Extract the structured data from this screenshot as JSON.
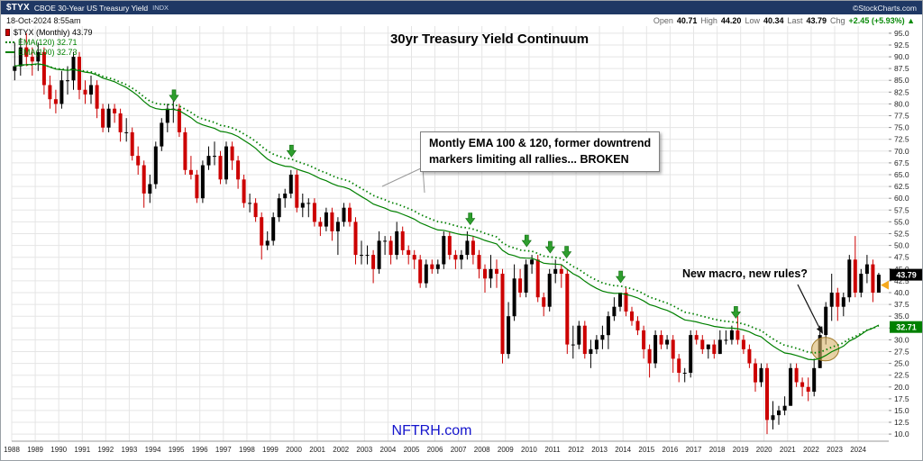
{
  "header": {
    "symbol": "$TYX",
    "symbol_desc": "CBOE 30-Year US Treasury Yield",
    "exchange": "INDX",
    "source": "©StockCharts.com",
    "datetime": "18-Oct-2024 8:55am",
    "quote": {
      "open_l": "Open",
      "open_v": "40.71",
      "high_l": "High",
      "high_v": "44.20",
      "low_l": "Low",
      "low_v": "40.34",
      "last_l": "Last",
      "last_v": "43.79",
      "chg_l": "Chg",
      "chg_v": "+2.45 (+5.93%) ▲"
    }
  },
  "legend": {
    "series": "$TYX (Monthly) 43.79",
    "ema120": "EMA(120) 32.71",
    "ema100": "EMA(100) 32.73"
  },
  "title": "30yr Treasury Yield Continuum",
  "watermark": "NFTRH.com",
  "annotations": {
    "callout_line1": "Montly EMA 100 & 120, former downtrend",
    "callout_line2": "markers limiting all rallies... BROKEN",
    "question": "New macro, new rules?"
  },
  "price_labels": {
    "last": "43.79",
    "ema": "32.71"
  },
  "colors": {
    "navy": "#1f3864",
    "candle_up": "#000000",
    "candle_down": "#cc0000",
    "ema_green": "#008000",
    "arrow_green": "#2e9e2e",
    "highlight_tan": "#d8b46a",
    "watermark_blue": "#1414cc",
    "chg_green": "#0a8a0a",
    "edge_marker_orange": "#f5a81c"
  },
  "chart_data": {
    "type": "candlestick",
    "title": "30yr Treasury Yield Continuum",
    "xlabel": "",
    "ylabel": "",
    "x_start_year": 1988,
    "x_interval_years": 0.25,
    "ylim": [
      8.5,
      96.5
    ],
    "grid": true,
    "x_ticks": [
      1988,
      1989,
      1990,
      1991,
      1992,
      1993,
      1994,
      1995,
      1996,
      1997,
      1998,
      1999,
      2000,
      2001,
      2002,
      2003,
      2004,
      2005,
      2006,
      2007,
      2008,
      2009,
      2010,
      2011,
      2012,
      2013,
      2014,
      2015,
      2016,
      2017,
      2018,
      2019,
      2020,
      2021,
      2022,
      2023,
      2024
    ],
    "y_ticks": [
      95,
      92.5,
      90,
      87.5,
      85,
      82.5,
      80,
      77.5,
      75,
      72.5,
      70,
      67.5,
      65,
      62.5,
      60,
      57.5,
      55,
      52.5,
      50,
      47.5,
      45,
      42.5,
      40,
      37.5,
      35,
      32.5,
      30,
      27.5,
      25,
      22.5,
      20,
      17.5,
      15,
      12.5,
      10
    ],
    "series": [
      {
        "name": "$TYX (Monthly)",
        "style": "candlestick",
        "last": 43.79
      },
      {
        "name": "EMA(120)",
        "style": "dotted-green",
        "last": 32.71
      },
      {
        "name": "EMA(100)",
        "style": "solid-green",
        "last": 32.73
      }
    ],
    "ema_periods_months": [
      100,
      120
    ],
    "months_per_bar": 3,
    "last_price": 43.79,
    "ema_label_value": 32.71,
    "edge_marker_value": 41.6,
    "arrows_years": [
      1994.9,
      1999.9,
      2007.5,
      2009.9,
      2010.9,
      2011.6,
      2013.9,
      2018.8
    ],
    "highlight": {
      "year": 2022.6,
      "value": 28,
      "note": "EMA breakout zone"
    },
    "ohlc": [
      [
        87,
        93,
        85,
        88
      ],
      [
        88,
        94,
        86,
        92
      ],
      [
        92,
        95,
        88,
        90
      ],
      [
        90,
        92,
        86,
        89
      ],
      [
        89,
        93,
        87,
        91
      ],
      [
        91,
        92,
        82,
        84
      ],
      [
        84,
        86,
        79,
        81
      ],
      [
        81,
        83,
        78,
        80
      ],
      [
        80,
        87,
        79,
        85
      ],
      [
        85,
        88,
        82,
        85
      ],
      [
        85,
        91,
        83,
        90
      ],
      [
        90,
        91,
        81,
        83
      ],
      [
        83,
        85,
        80,
        82
      ],
      [
        82,
        86,
        80,
        84
      ],
      [
        84,
        85,
        77,
        79
      ],
      [
        79,
        80,
        74,
        75
      ],
      [
        75,
        80,
        74,
        79
      ],
      [
        79,
        80,
        76,
        78
      ],
      [
        78,
        79,
        72,
        74
      ],
      [
        74,
        77,
        72,
        74
      ],
      [
        74,
        75,
        68,
        69
      ],
      [
        69,
        71,
        65,
        67
      ],
      [
        67,
        68,
        58,
        61
      ],
      [
        61,
        65,
        59,
        63
      ],
      [
        63,
        72,
        62,
        71
      ],
      [
        71,
        77,
        70,
        76
      ],
      [
        76,
        80,
        74,
        79
      ],
      [
        79,
        82,
        76,
        79
      ],
      [
        79,
        80,
        73,
        74
      ],
      [
        74,
        75,
        65,
        66
      ],
      [
        66,
        69,
        64,
        65
      ],
      [
        65,
        66,
        59,
        60
      ],
      [
        60,
        68,
        59,
        67
      ],
      [
        67,
        71,
        66,
        69
      ],
      [
        69,
        72,
        67,
        69
      ],
      [
        69,
        70,
        63,
        64
      ],
      [
        64,
        72,
        63,
        71
      ],
      [
        71,
        72,
        66,
        68
      ],
      [
        68,
        69,
        62,
        64
      ],
      [
        64,
        65,
        58,
        59
      ],
      [
        59,
        61,
        57,
        59
      ],
      [
        59,
        60,
        55,
        56
      ],
      [
        56,
        57,
        47,
        50
      ],
      [
        50,
        53,
        49,
        51
      ],
      [
        51,
        57,
        50,
        56
      ],
      [
        56,
        61,
        55,
        60
      ],
      [
        60,
        62,
        58,
        61
      ],
      [
        61,
        66,
        60,
        65
      ],
      [
        65,
        66,
        57,
        58
      ],
      [
        58,
        61,
        56,
        59
      ],
      [
        59,
        60,
        56,
        59
      ],
      [
        59,
        60,
        54,
        55
      ],
      [
        55,
        56,
        52,
        54
      ],
      [
        54,
        58,
        53,
        57
      ],
      [
        57,
        58,
        51,
        53
      ],
      [
        53,
        56,
        48,
        55
      ],
      [
        55,
        59,
        54,
        58
      ],
      [
        58,
        59,
        54,
        55
      ],
      [
        55,
        56,
        46,
        48
      ],
      [
        48,
        51,
        46,
        48
      ],
      [
        48,
        50,
        46,
        48
      ],
      [
        48,
        49,
        42,
        45
      ],
      [
        45,
        53,
        44,
        51
      ],
      [
        51,
        52,
        48,
        51
      ],
      [
        51,
        52,
        46,
        48
      ],
      [
        48,
        55,
        47,
        53
      ],
      [
        53,
        54,
        48,
        49
      ],
      [
        49,
        50,
        46,
        48
      ],
      [
        48,
        49,
        45,
        47
      ],
      [
        47,
        48,
        41,
        42
      ],
      [
        42,
        47,
        41,
        46
      ],
      [
        46,
        47,
        44,
        45
      ],
      [
        45,
        47,
        44,
        46
      ],
      [
        46,
        53,
        45,
        52
      ],
      [
        52,
        53,
        47,
        48
      ],
      [
        48,
        49,
        45,
        47
      ],
      [
        47,
        49,
        45,
        48
      ],
      [
        48,
        53,
        47,
        51
      ],
      [
        51,
        52,
        46,
        48
      ],
      [
        48,
        49,
        43,
        45
      ],
      [
        45,
        46,
        40,
        43
      ],
      [
        43,
        48,
        41,
        45
      ],
      [
        45,
        47,
        41,
        44
      ],
      [
        44,
        45,
        25,
        27
      ],
      [
        27,
        38,
        26,
        35
      ],
      [
        35,
        46,
        34,
        43
      ],
      [
        43,
        45,
        39,
        40
      ],
      [
        40,
        47,
        39,
        46
      ],
      [
        46,
        48,
        44,
        47
      ],
      [
        47,
        48,
        38,
        39
      ],
      [
        39,
        40,
        35,
        37
      ],
      [
        37,
        45,
        36,
        44
      ],
      [
        44,
        47,
        42,
        45
      ],
      [
        45,
        46,
        41,
        44
      ],
      [
        44,
        45,
        27,
        29
      ],
      [
        29,
        33,
        26,
        29
      ],
      [
        29,
        34,
        28,
        33
      ],
      [
        33,
        34,
        26,
        27
      ],
      [
        27,
        30,
        24,
        28
      ],
      [
        28,
        31,
        27,
        30
      ],
      [
        30,
        33,
        28,
        31
      ],
      [
        31,
        36,
        28,
        35
      ],
      [
        35,
        39,
        34,
        37
      ],
      [
        37,
        40,
        36,
        40
      ],
      [
        40,
        41,
        35,
        36
      ],
      [
        36,
        37,
        33,
        34
      ],
      [
        34,
        35,
        31,
        32
      ],
      [
        32,
        33,
        26,
        28
      ],
      [
        28,
        29,
        22,
        25
      ],
      [
        25,
        32,
        24,
        31
      ],
      [
        31,
        32,
        28,
        29
      ],
      [
        29,
        31,
        28,
        30
      ],
      [
        30,
        31,
        23,
        26
      ],
      [
        26,
        27,
        21,
        23
      ],
      [
        23,
        24,
        21,
        23
      ],
      [
        23,
        32,
        22,
        31
      ],
      [
        31,
        32,
        29,
        30
      ],
      [
        30,
        31,
        27,
        28
      ],
      [
        28,
        29,
        26,
        29
      ],
      [
        29,
        30,
        26,
        27
      ],
      [
        27,
        32,
        27,
        30
      ],
      [
        30,
        32,
        29,
        30
      ],
      [
        30,
        33,
        29,
        32
      ],
      [
        32,
        35,
        29,
        30
      ],
      [
        30,
        31,
        27,
        28
      ],
      [
        28,
        29,
        24,
        25
      ],
      [
        25,
        26,
        19,
        21
      ],
      [
        21,
        25,
        20,
        24
      ],
      [
        24,
        25,
        10,
        13
      ],
      [
        13,
        17,
        11,
        14
      ],
      [
        14,
        16,
        12,
        15
      ],
      [
        15,
        18,
        14,
        16
      ],
      [
        16,
        25,
        16,
        24
      ],
      [
        24,
        25,
        20,
        21
      ],
      [
        21,
        22,
        18,
        20
      ],
      [
        20,
        22,
        17,
        19
      ],
      [
        19,
        26,
        18,
        24
      ],
      [
        24,
        33,
        24,
        31
      ],
      [
        31,
        38,
        29,
        37
      ],
      [
        37,
        44,
        34,
        40
      ],
      [
        40,
        41,
        34,
        37
      ],
      [
        37,
        40,
        35,
        39
      ],
      [
        39,
        48,
        38,
        47
      ],
      [
        47,
        52,
        39,
        40
      ],
      [
        40,
        45,
        39,
        44
      ],
      [
        44,
        48,
        42,
        46
      ],
      [
        46,
        47,
        38,
        40
      ],
      [
        40,
        44.2,
        40.34,
        43.79
      ]
    ]
  }
}
